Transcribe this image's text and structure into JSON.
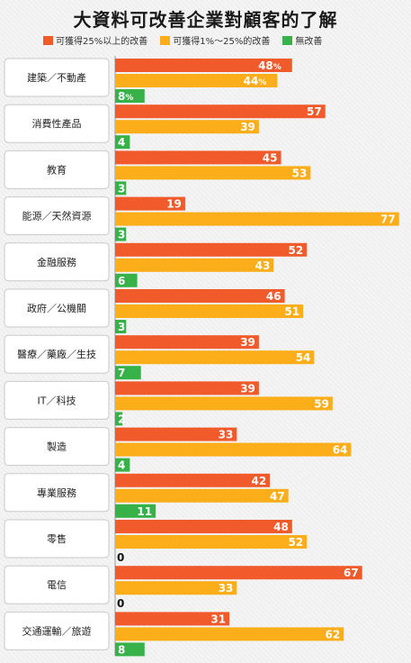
{
  "title": "大資料可改善企業對顧客的了解",
  "colors": {
    "high": "#f15a2b",
    "mid": "#fbad1a",
    "none": "#36b249"
  },
  "chart_data": {
    "type": "bar",
    "orientation": "horizontal",
    "title": "大資料可改善企業對顧客的了解",
    "categories": [
      "建築／不動產",
      "消費性產品",
      "教育",
      "能源／天然資源",
      "金融服務",
      "政府／公機關",
      "醫療／藥廠／生技",
      "IT／科技",
      "製造",
      "專業服務",
      "零售",
      "電信",
      "交通運輸／旅遊"
    ],
    "series": [
      {
        "name": "可獲得25%以上的改善",
        "color": "#f15a2b",
        "values": [
          48,
          57,
          45,
          19,
          52,
          46,
          39,
          39,
          33,
          42,
          48,
          67,
          31
        ],
        "label_suffix": [
          "%",
          "",
          "",
          "",
          "",
          "",
          "",
          "",
          "",
          "",
          "",
          "",
          ""
        ]
      },
      {
        "name": "可獲得1%～25%的改善",
        "color": "#fbad1a",
        "values": [
          44,
          39,
          53,
          77,
          43,
          51,
          54,
          59,
          64,
          47,
          52,
          33,
          62
        ],
        "label_suffix": [
          "%",
          "",
          "",
          "",
          "",
          "",
          "",
          "",
          "",
          "",
          "",
          "",
          ""
        ]
      },
      {
        "name": "無改善",
        "color": "#36b249",
        "values": [
          8,
          4,
          3,
          3,
          6,
          3,
          7,
          2,
          4,
          11,
          0,
          0,
          8
        ],
        "label_suffix": [
          "%",
          "",
          "",
          "",
          "",
          "",
          "",
          "",
          "",
          "",
          "",
          "",
          ""
        ]
      }
    ],
    "xlim": [
      0,
      77
    ],
    "grid": false,
    "legend_position": "top"
  }
}
